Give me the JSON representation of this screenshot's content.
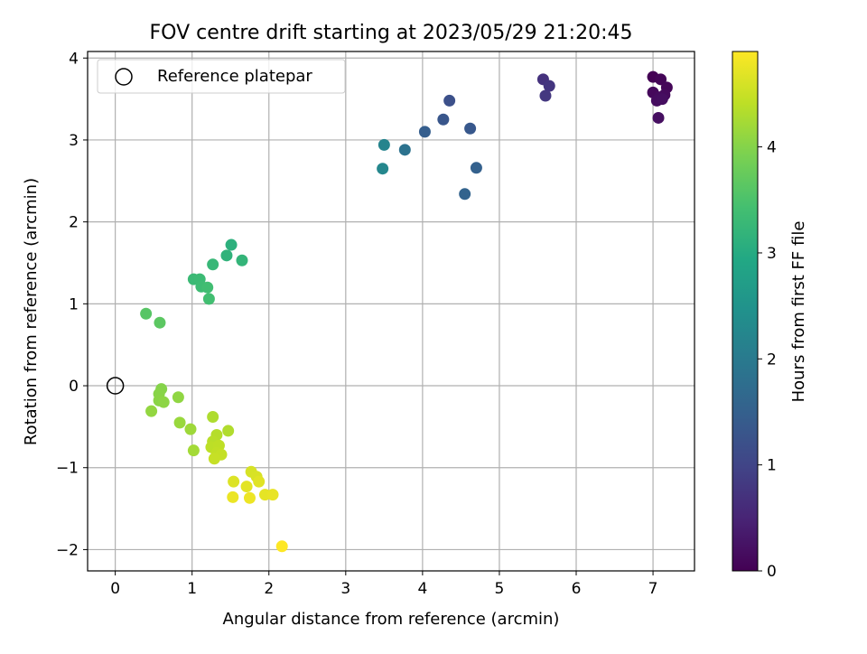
{
  "chart_data": {
    "type": "scatter",
    "title": "FOV centre drift starting at 2023/05/29 21:20:45",
    "xlabel": "Angular distance from reference (arcmin)",
    "ylabel": "Rotation from reference (arcmin)",
    "xlim": [
      -0.36,
      7.54
    ],
    "ylim": [
      -2.26,
      4.08
    ],
    "x_ticks": [
      0,
      1,
      2,
      3,
      4,
      5,
      6,
      7
    ],
    "y_ticks": [
      -2,
      -1,
      0,
      1,
      2,
      3,
      4
    ],
    "x_tick_labels": [
      "0",
      "1",
      "2",
      "3",
      "4",
      "5",
      "6",
      "7"
    ],
    "y_tick_labels": [
      "−2",
      "−1",
      "0",
      "1",
      "2",
      "3",
      "4"
    ],
    "grid": true,
    "legend": {
      "position": "upper-left",
      "entries": [
        "Reference platepar"
      ]
    },
    "reference_point": {
      "x": 0,
      "y": 0,
      "label": "Reference platepar"
    },
    "colorbar": {
      "label": "Hours from first FF file",
      "range": [
        0,
        4.9
      ],
      "ticks": [
        0,
        1,
        2,
        3,
        4
      ],
      "tick_labels": [
        "0",
        "1",
        "2",
        "3",
        "4"
      ],
      "colormap": "viridis"
    },
    "points": [
      {
        "x": 7.0,
        "y": 3.77,
        "t": 0.0
      },
      {
        "x": 7.1,
        "y": 3.74,
        "t": 0.05
      },
      {
        "x": 7.18,
        "y": 3.64,
        "t": 0.08
      },
      {
        "x": 7.0,
        "y": 3.58,
        "t": 0.1
      },
      {
        "x": 7.15,
        "y": 3.55,
        "t": 0.12
      },
      {
        "x": 7.08,
        "y": 3.52,
        "t": 0.14
      },
      {
        "x": 7.05,
        "y": 3.48,
        "t": 0.16
      },
      {
        "x": 7.12,
        "y": 3.5,
        "t": 0.18
      },
      {
        "x": 7.07,
        "y": 3.27,
        "t": 0.2
      },
      {
        "x": 5.57,
        "y": 3.74,
        "t": 0.7
      },
      {
        "x": 5.65,
        "y": 3.66,
        "t": 0.75
      },
      {
        "x": 5.6,
        "y": 3.54,
        "t": 0.8
      },
      {
        "x": 4.35,
        "y": 3.48,
        "t": 1.2
      },
      {
        "x": 4.27,
        "y": 3.25,
        "t": 1.3
      },
      {
        "x": 4.62,
        "y": 3.14,
        "t": 1.35
      },
      {
        "x": 4.03,
        "y": 3.1,
        "t": 1.45
      },
      {
        "x": 4.7,
        "y": 2.66,
        "t": 1.5
      },
      {
        "x": 4.55,
        "y": 2.34,
        "t": 1.55
      },
      {
        "x": 3.77,
        "y": 2.88,
        "t": 1.85
      },
      {
        "x": 3.5,
        "y": 2.94,
        "t": 2.2
      },
      {
        "x": 3.48,
        "y": 2.65,
        "t": 2.25
      },
      {
        "x": 1.51,
        "y": 1.72,
        "t": 3.1
      },
      {
        "x": 1.45,
        "y": 1.59,
        "t": 3.15
      },
      {
        "x": 1.65,
        "y": 1.53,
        "t": 3.2
      },
      {
        "x": 1.27,
        "y": 1.48,
        "t": 3.25
      },
      {
        "x": 1.02,
        "y": 1.3,
        "t": 3.3
      },
      {
        "x": 1.1,
        "y": 1.3,
        "t": 3.32
      },
      {
        "x": 1.12,
        "y": 1.21,
        "t": 3.35
      },
      {
        "x": 1.2,
        "y": 1.2,
        "t": 3.38
      },
      {
        "x": 1.22,
        "y": 1.06,
        "t": 3.4
      },
      {
        "x": 0.4,
        "y": 0.88,
        "t": 3.6
      },
      {
        "x": 0.58,
        "y": 0.77,
        "t": 3.65
      },
      {
        "x": 0.6,
        "y": -0.04,
        "t": 4.0
      },
      {
        "x": 0.57,
        "y": -0.1,
        "t": 4.02
      },
      {
        "x": 0.57,
        "y": -0.18,
        "t": 4.04
      },
      {
        "x": 0.63,
        "y": -0.2,
        "t": 4.06
      },
      {
        "x": 0.82,
        "y": -0.14,
        "t": 4.08
      },
      {
        "x": 0.47,
        "y": -0.31,
        "t": 4.1
      },
      {
        "x": 0.84,
        "y": -0.45,
        "t": 4.15
      },
      {
        "x": 0.98,
        "y": -0.53,
        "t": 4.18
      },
      {
        "x": 1.02,
        "y": -0.79,
        "t": 4.22
      },
      {
        "x": 1.27,
        "y": -0.38,
        "t": 4.3
      },
      {
        "x": 1.47,
        "y": -0.55,
        "t": 4.32
      },
      {
        "x": 1.32,
        "y": -0.6,
        "t": 4.35
      },
      {
        "x": 1.27,
        "y": -0.68,
        "t": 4.37
      },
      {
        "x": 1.25,
        "y": -0.75,
        "t": 4.4
      },
      {
        "x": 1.35,
        "y": -0.73,
        "t": 4.42
      },
      {
        "x": 1.32,
        "y": -0.82,
        "t": 4.44
      },
      {
        "x": 1.38,
        "y": -0.84,
        "t": 4.46
      },
      {
        "x": 1.29,
        "y": -0.89,
        "t": 4.48
      },
      {
        "x": 1.77,
        "y": -1.05,
        "t": 4.6
      },
      {
        "x": 1.84,
        "y": -1.11,
        "t": 4.62
      },
      {
        "x": 1.54,
        "y": -1.17,
        "t": 4.65
      },
      {
        "x": 1.87,
        "y": -1.17,
        "t": 4.68
      },
      {
        "x": 1.71,
        "y": -1.23,
        "t": 4.7
      },
      {
        "x": 1.95,
        "y": -1.33,
        "t": 4.72
      },
      {
        "x": 2.05,
        "y": -1.33,
        "t": 4.74
      },
      {
        "x": 1.53,
        "y": -1.36,
        "t": 4.76
      },
      {
        "x": 1.75,
        "y": -1.37,
        "t": 4.78
      },
      {
        "x": 2.17,
        "y": -1.96,
        "t": 4.9
      }
    ]
  }
}
